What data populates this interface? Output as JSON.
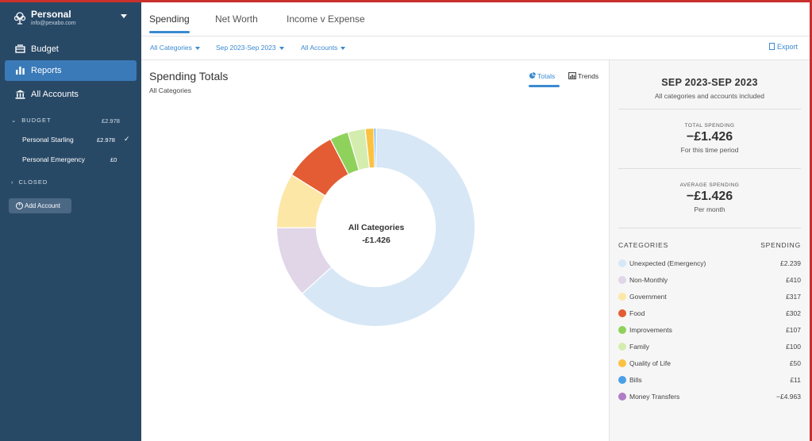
{
  "sidebar": {
    "budget_name": "Personal",
    "budget_email": "info@pexabo.com",
    "nav": [
      {
        "label": "Budget",
        "icon": "budget-icon"
      },
      {
        "label": "Reports",
        "icon": "bar-chart-icon"
      },
      {
        "label": "All Accounts",
        "icon": "bank-icon"
      }
    ],
    "budget_section": {
      "label": "BUDGET",
      "balance": "£2.978"
    },
    "accounts": [
      {
        "name": "Personal Starling",
        "balance": "£2.978"
      },
      {
        "name": "Personal Emergency",
        "balance": "£0"
      }
    ],
    "closed_section": {
      "label": "CLOSED"
    },
    "add_account_label": "Add Account"
  },
  "tabs": [
    "Spending",
    "Net Worth",
    "Income v Expense"
  ],
  "filters": {
    "categories": "All Categories",
    "date_range": "Sep 2023-Sep 2023",
    "accounts": "All Accounts",
    "export": "Export"
  },
  "main": {
    "title": "Spending Totals",
    "subtitle": "All Categories",
    "view_totals": "Totals",
    "view_trends": "Trends",
    "center_title": "All Categories",
    "center_value": "-£1.426"
  },
  "summary": {
    "range": "SEP 2023-SEP 2023",
    "range_sub": "All categories and accounts included",
    "total_label": "TOTAL SPENDING",
    "total_value": "−£1.426",
    "total_sub": "For this time period",
    "avg_label": "AVERAGE SPENDING",
    "avg_value": "−£1.426",
    "avg_sub": "Per month",
    "col_categories": "CATEGORIES",
    "col_spending": "SPENDING"
  },
  "chart_data": {
    "type": "pie",
    "series": [
      {
        "name": "Unexpected (Emergency)",
        "amount": "£2.239",
        "value": 2239,
        "color": "#d7e7f6"
      },
      {
        "name": "Non-Monthly",
        "amount": "£410",
        "value": 410,
        "color": "#e0d6e8"
      },
      {
        "name": "Government",
        "amount": "£317",
        "value": 317,
        "color": "#fde7a7"
      },
      {
        "name": "Food",
        "amount": "£302",
        "value": 302,
        "color": "#e35c33"
      },
      {
        "name": "Improvements",
        "amount": "£107",
        "value": 107,
        "color": "#8fd25b"
      },
      {
        "name": "Family",
        "amount": "£100",
        "value": 100,
        "color": "#d4edaf"
      },
      {
        "name": "Quality of Life",
        "amount": "£50",
        "value": 50,
        "color": "#fbc242"
      },
      {
        "name": "Bills",
        "amount": "£11",
        "value": 11,
        "color": "#4aa0e6"
      },
      {
        "name": "Money Transfers",
        "amount": "−£4.963",
        "value": -4963,
        "color": "#b07cc6"
      }
    ]
  }
}
